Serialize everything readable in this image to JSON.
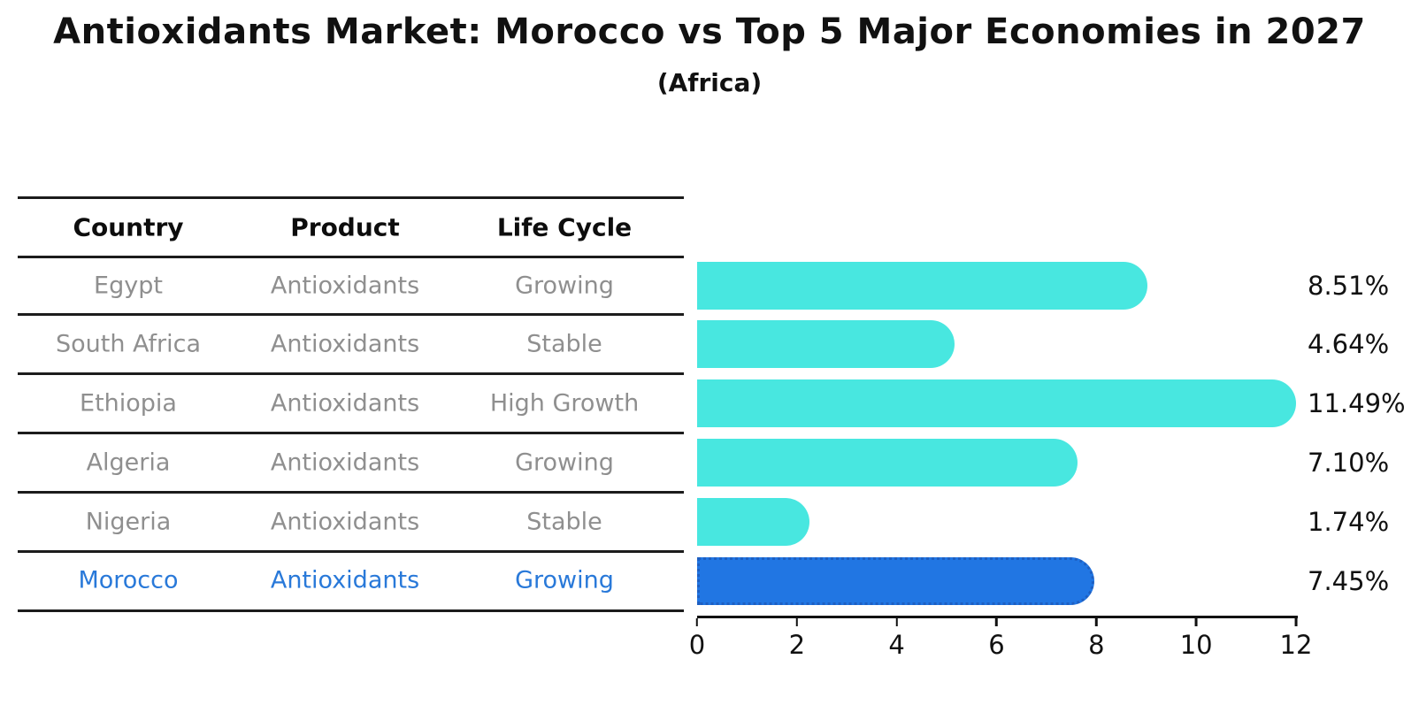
{
  "header": {
    "title": "Antioxidants Market: Morocco vs Top 5 Major Economies in 2027",
    "subtitle": "(Africa)"
  },
  "table": {
    "columns": [
      "Country",
      "Product",
      "Life Cycle"
    ],
    "rows": [
      {
        "country": "Egypt",
        "product": "Antioxidants",
        "life_cycle": "Growing"
      },
      {
        "country": "South Africa",
        "product": "Antioxidants",
        "life_cycle": "Stable"
      },
      {
        "country": "Ethiopia",
        "product": "Antioxidants",
        "life_cycle": "High Growth"
      },
      {
        "country": "Algeria",
        "product": "Antioxidants",
        "life_cycle": "Growing"
      },
      {
        "country": "Nigeria",
        "product": "Antioxidants",
        "life_cycle": "Stable"
      },
      {
        "country": "Morocco",
        "product": "Antioxidants",
        "life_cycle": "Growing"
      }
    ]
  },
  "chart_data": {
    "type": "bar",
    "orientation": "horizontal",
    "title": "Antioxidants Market: Morocco vs Top 5 Major Economies in 2027 (Africa)",
    "categories": [
      "Egypt",
      "South Africa",
      "Ethiopia",
      "Algeria",
      "Nigeria",
      "Morocco"
    ],
    "values": [
      8.51,
      4.64,
      11.49,
      7.1,
      1.74,
      7.45
    ],
    "labels": [
      "8.51%",
      "4.64%",
      "11.49%",
      "7.10%",
      "1.74%",
      "7.45%"
    ],
    "x_ticks": [
      "0",
      "2",
      "4",
      "6",
      "8",
      "10",
      "12"
    ],
    "xlim": [
      0,
      12
    ],
    "grid": false,
    "highlight_index": 5,
    "colors": {
      "bar": "#48e7e0",
      "highlight_bar": "#2176e3",
      "highlight_border": "#1e5fc2",
      "highlight_text": "#2979d9",
      "row_text": "#8f8f8f",
      "heading_text": "#111111"
    }
  }
}
